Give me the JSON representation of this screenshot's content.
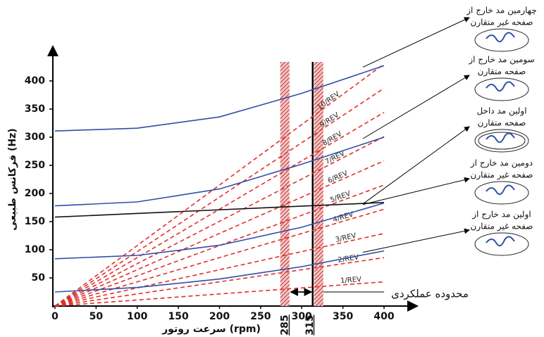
{
  "chart_data": {
    "type": "campbell",
    "x_label": "سرعت روتور (rpm)",
    "y_label": "فرکانس طبیعی (Hz)",
    "xlim": [
      0,
      400
    ],
    "ylim": [
      0,
      450
    ],
    "xticks": [
      0,
      50,
      100,
      150,
      200,
      250,
      300,
      350,
      400
    ],
    "yticks": [
      50,
      100,
      150,
      200,
      250,
      300,
      350,
      400
    ],
    "band_edges": [
      285,
      315
    ],
    "band_label": "محدوده عملکردی",
    "modes": [
      {
        "label_lines": [
          "چهارمین مد خارج از",
          "صفحه غیر متقارن"
        ],
        "color": "#2f4fa8",
        "x": [
          0,
          100,
          200,
          300,
          400
        ],
        "values": [
          311,
          316,
          336,
          378,
          427
        ]
      },
      {
        "label_lines": [
          "سومین مد خارج از",
          "صفحه متقارن"
        ],
        "color": "#2f4fa8",
        "x": [
          0,
          100,
          200,
          300,
          400
        ],
        "values": [
          178,
          185,
          208,
          252,
          300
        ]
      },
      {
        "label_lines": [
          "اولین مد داخل",
          "صفحه متقارن"
        ],
        "color": "#111111",
        "x": [
          0,
          400
        ],
        "values": [
          158,
          184
        ]
      },
      {
        "label_lines": [
          "دومین مد خارج از",
          "صفحه غیر متقارن"
        ],
        "color": "#2f4fa8",
        "x": [
          0,
          100,
          200,
          300,
          400
        ],
        "values": [
          84,
          90,
          108,
          140,
          183
        ]
      },
      {
        "label_lines": [
          "اولین مد خارج از",
          "صفحه غیر متقارن"
        ],
        "color": "#2f4fa8",
        "x": [
          0,
          100,
          200,
          300,
          400
        ],
        "values": [
          25,
          33,
          48,
          70,
          98
        ]
      }
    ],
    "orders": [
      {
        "name": "1/REV",
        "color": "#e0302a",
        "x": [
          0,
          400
        ],
        "values": [
          0,
          43
        ]
      },
      {
        "name": "2/REV",
        "color": "#e0302a",
        "x": [
          0,
          400
        ],
        "values": [
          0,
          86
        ]
      },
      {
        "name": "3/REV",
        "color": "#e0302a",
        "x": [
          0,
          400
        ],
        "values": [
          0,
          129
        ]
      },
      {
        "name": "4/REV",
        "color": "#e0302a",
        "x": [
          0,
          400
        ],
        "values": [
          0,
          172
        ]
      },
      {
        "name": "5/REV",
        "color": "#e0302a",
        "x": [
          0,
          400
        ],
        "values": [
          0,
          215
        ]
      },
      {
        "name": "6/REV",
        "color": "#e0302a",
        "x": [
          0,
          400
        ],
        "values": [
          0,
          258
        ]
      },
      {
        "name": "7/REV",
        "color": "#e0302a",
        "x": [
          0,
          400
        ],
        "values": [
          0,
          301
        ]
      },
      {
        "name": "8/REV",
        "color": "#e0302a",
        "x": [
          0,
          400
        ],
        "values": [
          0,
          344
        ]
      },
      {
        "name": "9/REV",
        "color": "#e0302a",
        "x": [
          0,
          400
        ],
        "values": [
          0,
          387
        ]
      },
      {
        "name": "10/REV",
        "color": "#e0302a",
        "x": [
          0,
          400
        ],
        "values": [
          0,
          430
        ]
      }
    ]
  }
}
